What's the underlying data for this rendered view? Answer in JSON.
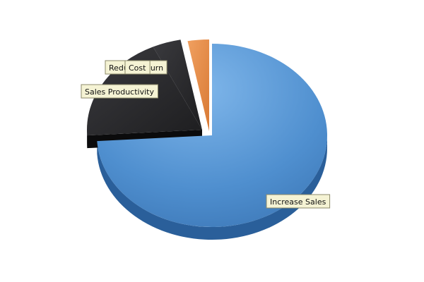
{
  "chart_data": {
    "type": "pie",
    "style": "3d-exploded",
    "series": [
      {
        "label": "Increase Sales",
        "value": 74,
        "color": "#4f8fcf"
      },
      {
        "label": "Sales Productivity",
        "value": 19,
        "color": "#2a2a2e"
      },
      {
        "label": "Reduce Churn",
        "value": 4,
        "color": "#262628"
      },
      {
        "label": "Cost",
        "value": 3,
        "color": "#e08a45"
      }
    ],
    "legend": "none"
  }
}
